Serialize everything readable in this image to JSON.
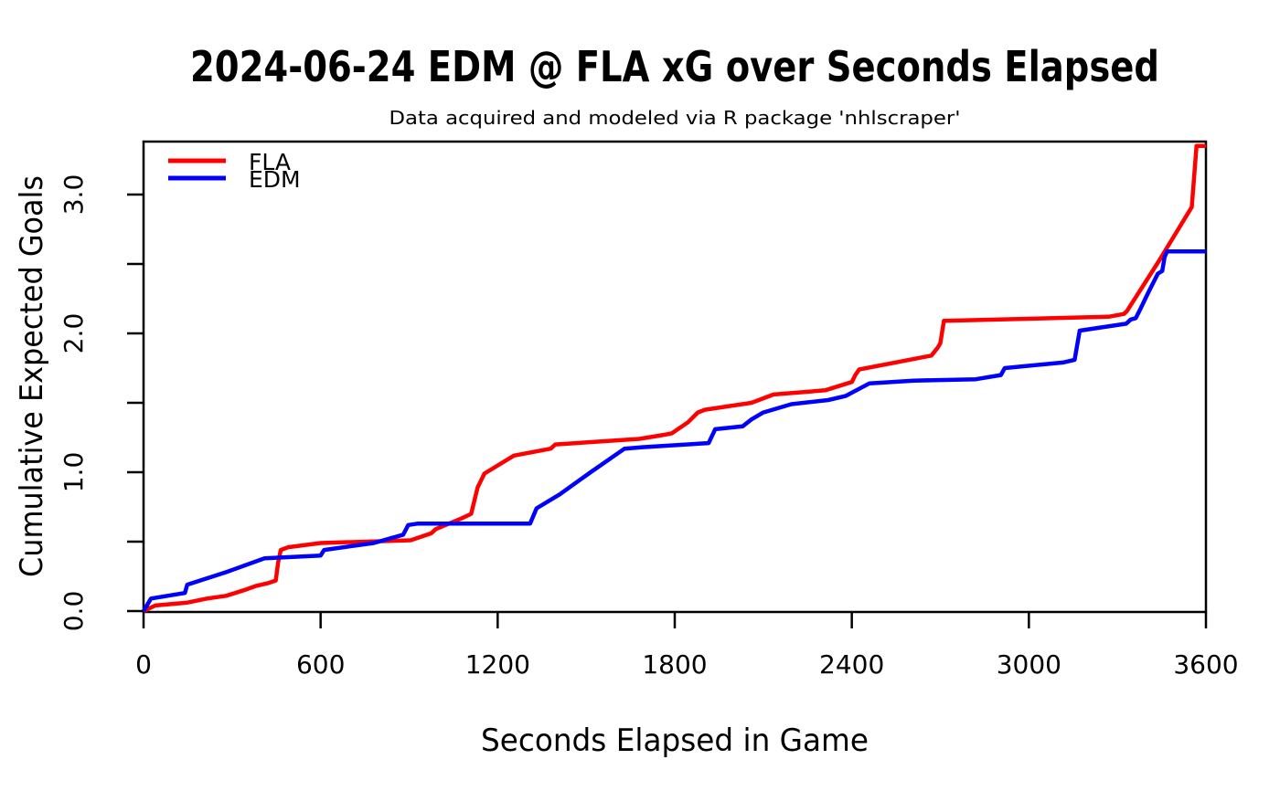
{
  "title": "2024-06-24 EDM @ FLA xG over Seconds Elapsed",
  "subtitle": "Data acquired and modeled via R package 'nhlscraper'",
  "legend": [
    {
      "label": "FLA",
      "color": "#FF0000"
    },
    {
      "label": "EDM",
      "color": "#0000FF"
    }
  ],
  "colors": {
    "fla_line": "#FF0000",
    "edm_line": "#0000FF",
    "axis": "#000000",
    "background": "#FFFFFF"
  },
  "chart_data": {
    "type": "line",
    "title": "2024-06-24 EDM @ FLA xG over Seconds Elapsed",
    "subtitle": "Data acquired and modeled via R package 'nhlscraper'",
    "xlabel": "Seconds Elapsed in Game",
    "ylabel": "Cumulative Expected Goals",
    "xlim": [
      0,
      3600
    ],
    "ylim": [
      0,
      3.38
    ],
    "x_ticks": [
      0,
      600,
      1200,
      1800,
      2400,
      3000,
      3600
    ],
    "x_tick_labels": [
      "0",
      "600",
      "1200",
      "1800",
      "2400",
      "3000",
      "3600"
    ],
    "y_ticks_major": [
      0.0,
      1.0,
      2.0,
      3.0
    ],
    "y_tick_labels": [
      "0.0",
      "1.0",
      "2.0",
      "3.0"
    ],
    "y_ticks_minor": [
      0.5,
      1.5,
      2.5
    ],
    "grid": false,
    "legend_position": "topleft",
    "series": [
      {
        "name": "FLA",
        "color": "#FF0000",
        "points": [
          [
            0,
            0
          ],
          [
            40,
            0.04
          ],
          [
            145,
            0.06
          ],
          [
            215,
            0.09
          ],
          [
            280,
            0.11
          ],
          [
            340,
            0.15
          ],
          [
            380,
            0.18
          ],
          [
            420,
            0.2
          ],
          [
            448,
            0.22
          ],
          [
            456,
            0.35
          ],
          [
            465,
            0.44
          ],
          [
            490,
            0.46
          ],
          [
            600,
            0.49
          ],
          [
            905,
            0.51
          ],
          [
            975,
            0.56
          ],
          [
            990,
            0.59
          ],
          [
            1080,
            0.67
          ],
          [
            1110,
            0.7
          ],
          [
            1132,
            0.89
          ],
          [
            1155,
            0.99
          ],
          [
            1255,
            1.12
          ],
          [
            1380,
            1.17
          ],
          [
            1395,
            1.2
          ],
          [
            1680,
            1.24
          ],
          [
            1765,
            1.27
          ],
          [
            1790,
            1.28
          ],
          [
            1845,
            1.36
          ],
          [
            1878,
            1.43
          ],
          [
            1902,
            1.45
          ],
          [
            2060,
            1.5
          ],
          [
            2135,
            1.56
          ],
          [
            2310,
            1.59
          ],
          [
            2400,
            1.65
          ],
          [
            2412,
            1.7
          ],
          [
            2425,
            1.74
          ],
          [
            2670,
            1.84
          ],
          [
            2692,
            1.9
          ],
          [
            2700,
            1.93
          ],
          [
            2712,
            2.09
          ],
          [
            3270,
            2.12
          ],
          [
            3322,
            2.14
          ],
          [
            3332,
            2.16
          ],
          [
            3440,
            2.52
          ],
          [
            3552,
            2.91
          ],
          [
            3568,
            3.35
          ],
          [
            3600,
            3.35
          ]
        ]
      },
      {
        "name": "EDM",
        "color": "#0000FF",
        "points": [
          [
            0,
            0
          ],
          [
            25,
            0.09
          ],
          [
            140,
            0.13
          ],
          [
            148,
            0.19
          ],
          [
            280,
            0.28
          ],
          [
            410,
            0.38
          ],
          [
            600,
            0.4
          ],
          [
            612,
            0.44
          ],
          [
            780,
            0.49
          ],
          [
            880,
            0.55
          ],
          [
            897,
            0.62
          ],
          [
            930,
            0.63
          ],
          [
            1310,
            0.63
          ],
          [
            1332,
            0.74
          ],
          [
            1410,
            0.84
          ],
          [
            1515,
            1.0
          ],
          [
            1630,
            1.17
          ],
          [
            1690,
            1.18
          ],
          [
            1915,
            1.21
          ],
          [
            1937,
            1.31
          ],
          [
            2030,
            1.33
          ],
          [
            2060,
            1.38
          ],
          [
            2100,
            1.43
          ],
          [
            2195,
            1.49
          ],
          [
            2320,
            1.52
          ],
          [
            2380,
            1.55
          ],
          [
            2460,
            1.64
          ],
          [
            2610,
            1.66
          ],
          [
            2820,
            1.67
          ],
          [
            2905,
            1.7
          ],
          [
            2918,
            1.75
          ],
          [
            3115,
            1.79
          ],
          [
            3155,
            1.81
          ],
          [
            3172,
            2.02
          ],
          [
            3330,
            2.07
          ],
          [
            3345,
            2.1
          ],
          [
            3362,
            2.11
          ],
          [
            3374,
            2.16
          ],
          [
            3406,
            2.3
          ],
          [
            3437,
            2.43
          ],
          [
            3452,
            2.45
          ],
          [
            3460,
            2.55
          ],
          [
            3468,
            2.59
          ],
          [
            3600,
            2.59
          ]
        ]
      }
    ]
  }
}
